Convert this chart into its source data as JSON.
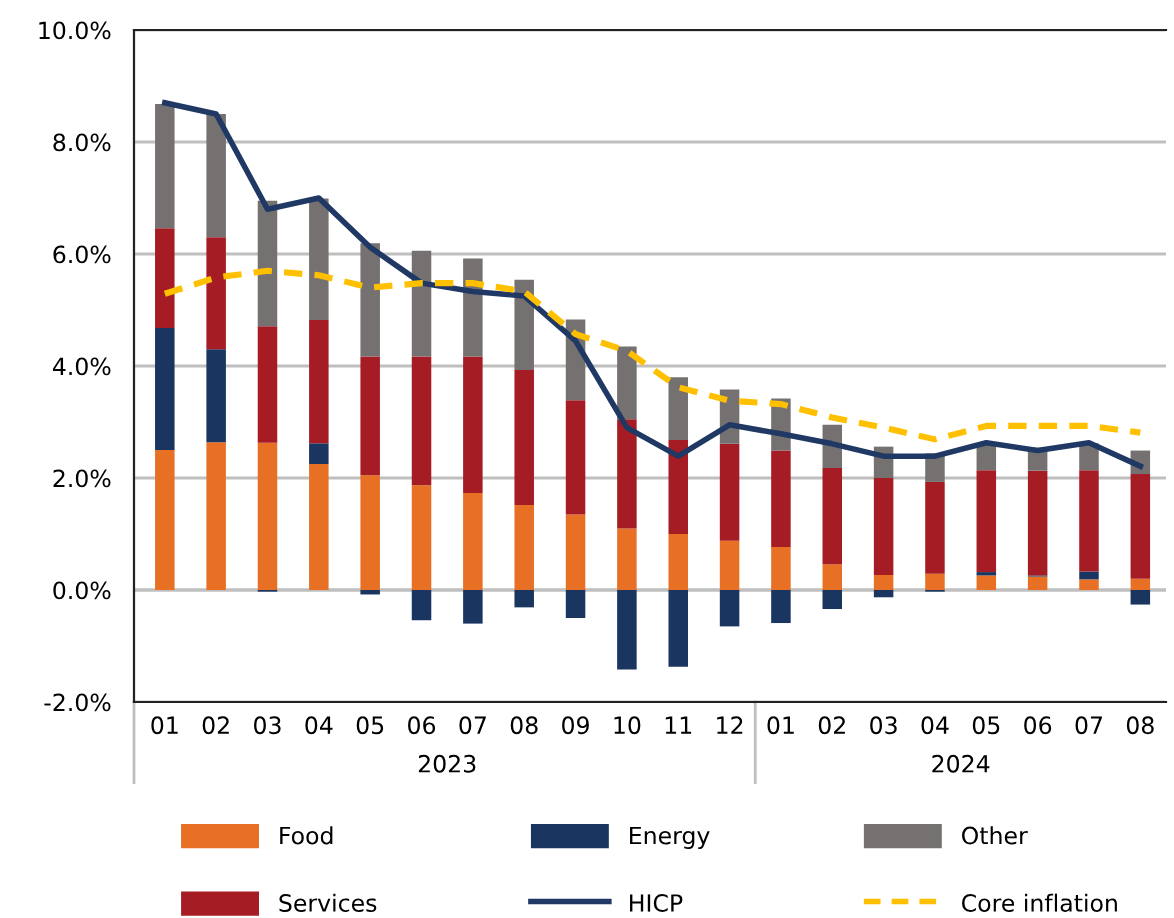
{
  "chart_data": {
    "type": "bar",
    "stacked": true,
    "categories": [
      "01",
      "02",
      "03",
      "04",
      "05",
      "06",
      "07",
      "08",
      "09",
      "10",
      "11",
      "12",
      "01",
      "02",
      "03",
      "04",
      "05",
      "06",
      "07",
      "08"
    ],
    "annotations": [
      "2023",
      "2024"
    ],
    "ylim": [
      -2,
      10
    ],
    "yticks": [
      {
        "value": -2,
        "label": "-2.0%"
      },
      {
        "value": 0,
        "label": "0.0%"
      },
      {
        "value": 2,
        "label": "2.0%"
      },
      {
        "value": 4,
        "label": "4.0%"
      },
      {
        "value": 6,
        "label": "6.0%"
      },
      {
        "value": 8,
        "label": "8.0%"
      },
      {
        "value": 10,
        "label": "10.0%"
      }
    ],
    "grid": "y",
    "legend": "bottom",
    "series": [
      {
        "name": "Food",
        "color": "#e87025",
        "values": [
          2.5,
          2.64,
          2.63,
          2.25,
          2.05,
          1.87,
          1.73,
          1.52,
          1.35,
          1.1,
          1.0,
          0.88,
          0.77,
          0.46,
          0.27,
          0.29,
          0.26,
          0.24,
          0.19,
          0.2
        ]
      },
      {
        "name": "Energy",
        "color": "#1a3560",
        "values": [
          2.18,
          1.66,
          -0.03,
          0.37,
          -0.08,
          -0.54,
          -0.6,
          -0.31,
          -0.5,
          -1.42,
          -1.37,
          -0.65,
          -0.59,
          -0.34,
          -0.13,
          -0.03,
          0.06,
          0.02,
          0.14,
          -0.26
        ]
      },
      {
        "name": "Services",
        "color": "#a51c24",
        "values": [
          1.78,
          2.0,
          2.08,
          2.2,
          2.12,
          2.3,
          2.44,
          2.41,
          2.04,
          1.95,
          1.68,
          1.73,
          1.72,
          1.72,
          1.73,
          1.64,
          1.82,
          1.87,
          1.81,
          1.87
        ]
      },
      {
        "name": "Other",
        "color": "#767171",
        "values": [
          2.22,
          2.2,
          2.24,
          2.17,
          2.02,
          1.89,
          1.75,
          1.61,
          1.44,
          1.3,
          1.12,
          0.97,
          0.93,
          0.77,
          0.56,
          0.51,
          0.48,
          0.41,
          0.48,
          0.42
        ]
      },
      {
        "name": "HICP",
        "type": "line",
        "color": "#1f3864",
        "line_style": "solid",
        "values": [
          8.7,
          8.5,
          6.8,
          7.0,
          6.12,
          5.48,
          5.33,
          5.25,
          4.45,
          2.9,
          2.39,
          2.95,
          2.79,
          2.61,
          2.39,
          2.39,
          2.63,
          2.49,
          2.63,
          2.21
        ]
      },
      {
        "name": "Core inflation",
        "type": "line",
        "color": "#ffc000",
        "line_style": "dashed",
        "values": [
          5.29,
          5.58,
          5.7,
          5.62,
          5.4,
          5.48,
          5.48,
          5.33,
          4.57,
          4.27,
          3.62,
          3.38,
          3.32,
          3.08,
          2.9,
          2.69,
          2.93,
          2.93,
          2.93,
          2.81
        ]
      }
    ]
  }
}
